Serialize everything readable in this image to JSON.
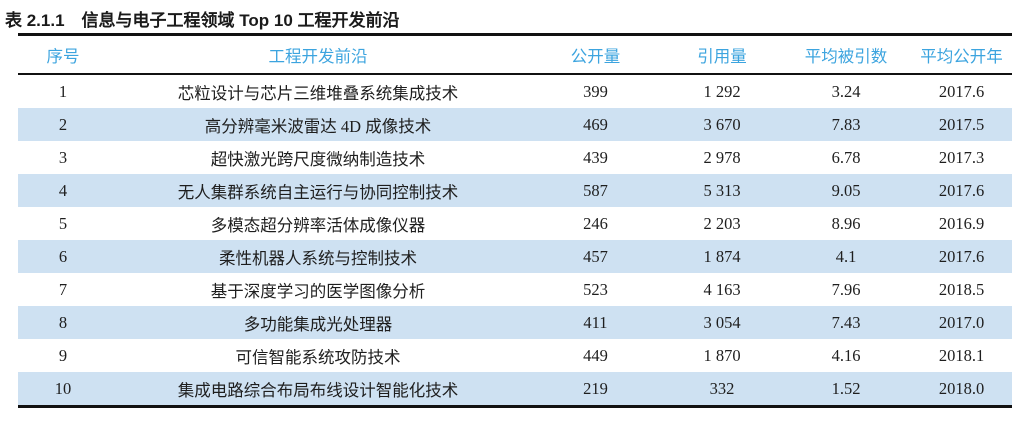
{
  "table": {
    "title": "表 2.1.1　信息与电子工程领域 Top 10 工程开发前沿",
    "columns": [
      "序号",
      "工程开发前沿",
      "公开量",
      "引用量",
      "平均被引数",
      "平均公开年"
    ],
    "rows": [
      [
        "1",
        "芯粒设计与芯片三维堆叠系统集成技术",
        "399",
        "1 292",
        "3.24",
        "2017.6"
      ],
      [
        "2",
        "高分辨毫米波雷达 4D 成像技术",
        "469",
        "3 670",
        "7.83",
        "2017.5"
      ],
      [
        "3",
        "超快激光跨尺度微纳制造技术",
        "439",
        "2 978",
        "6.78",
        "2017.3"
      ],
      [
        "4",
        "无人集群系统自主运行与协同控制技术",
        "587",
        "5 313",
        "9.05",
        "2017.6"
      ],
      [
        "5",
        "多模态超分辨率活体成像仪器",
        "246",
        "2 203",
        "8.96",
        "2016.9"
      ],
      [
        "6",
        "柔性机器人系统与控制技术",
        "457",
        "1 874",
        "4.1",
        "2017.6"
      ],
      [
        "7",
        "基于深度学习的医学图像分析",
        "523",
        "4 163",
        "7.96",
        "2018.5"
      ],
      [
        "8",
        "多功能集成光处理器",
        "411",
        "3 054",
        "7.43",
        "2017.0"
      ],
      [
        "9",
        "可信智能系统攻防技术",
        "449",
        "1 870",
        "4.16",
        "2018.1"
      ],
      [
        "10",
        "集成电路综合布局布线设计智能化技术",
        "219",
        "332",
        "1.52",
        "2018.0"
      ]
    ],
    "colors": {
      "header_text": "#3ca4df",
      "row_stripe": "#cee1f2",
      "rule": "#111111",
      "body_text": "#1e1e1e"
    }
  }
}
